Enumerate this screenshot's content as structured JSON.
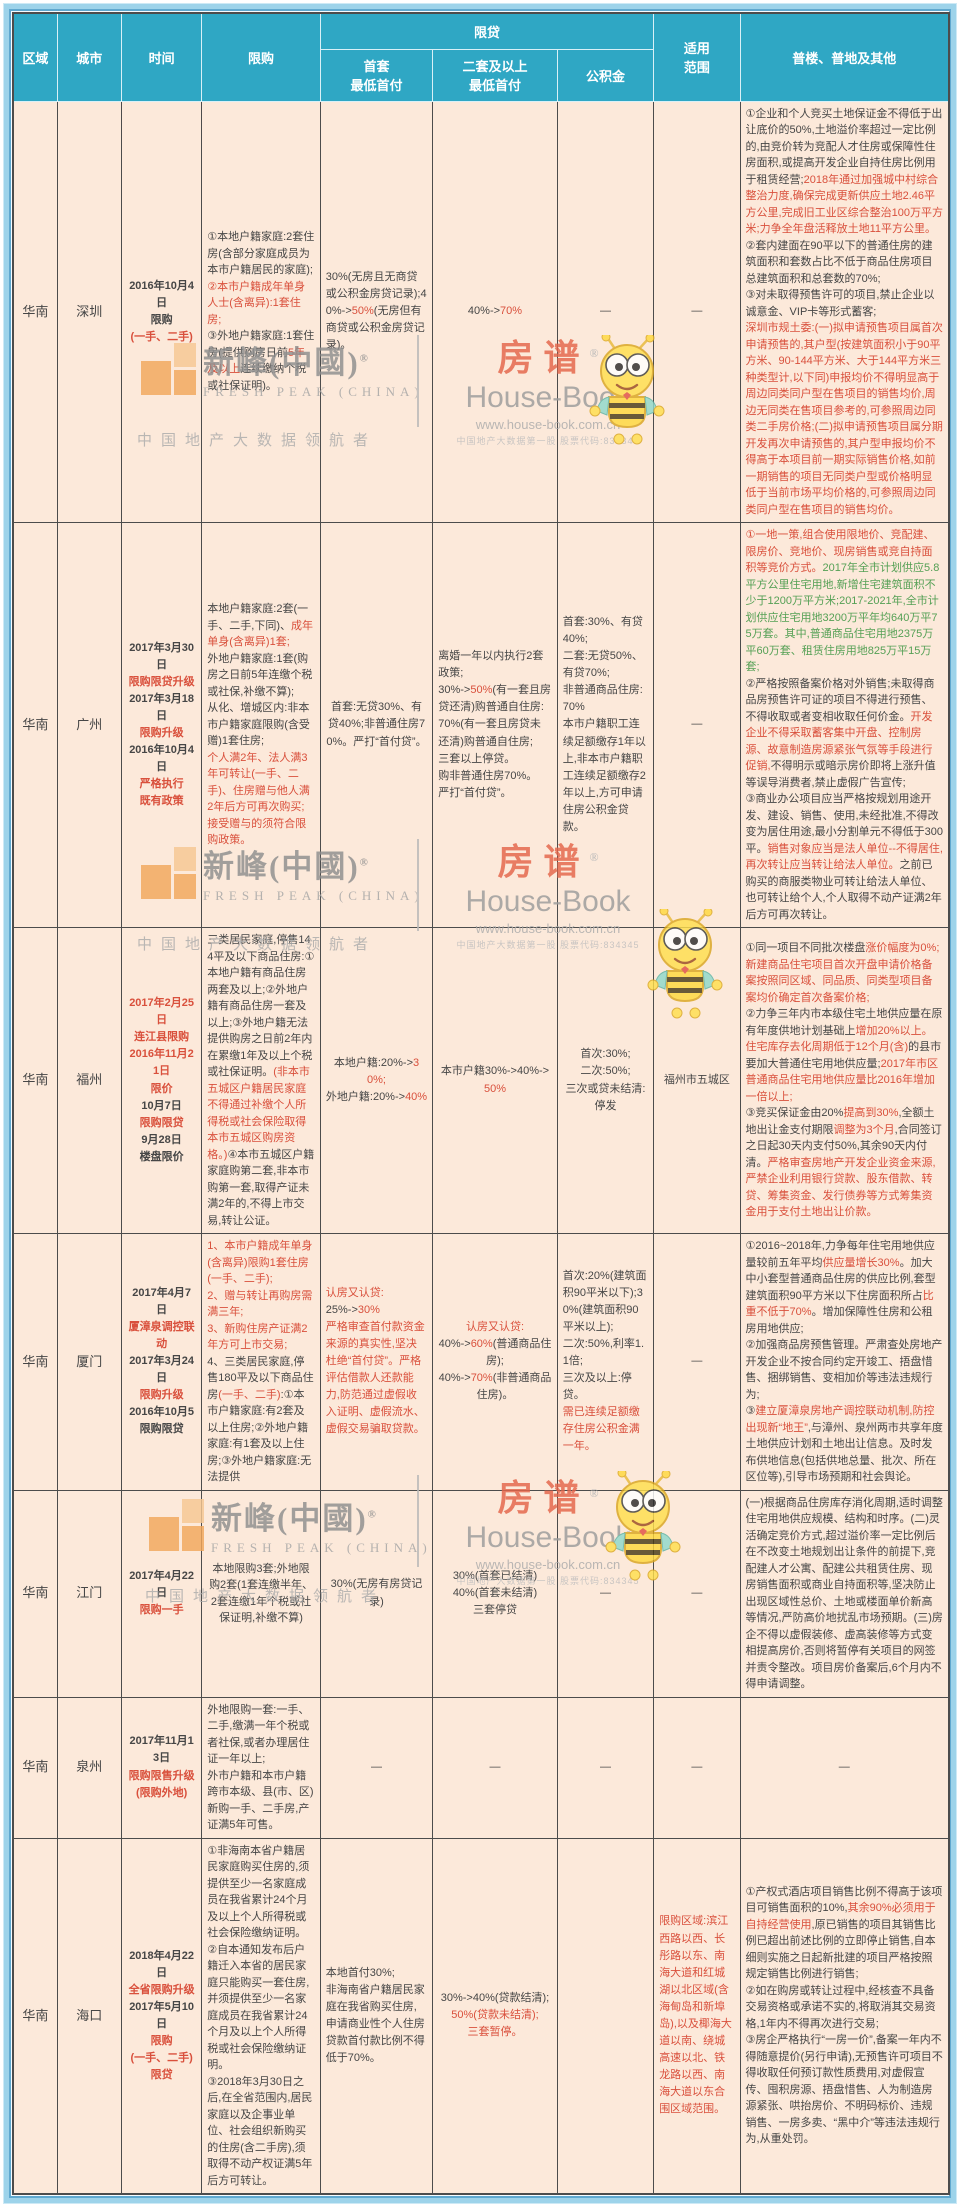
{
  "header": {
    "region": "区域",
    "city": "城市",
    "time": "时间",
    "gou": "限购",
    "loan_group": "限贷",
    "shoutao": "首套\n最低首付",
    "ertao": "二套及以上\n最低首付",
    "gjj": "公积金",
    "scope": "适用\n范围",
    "other": "普楼、普地及其他"
  },
  "colors": {
    "red": "#d9503c",
    "green": "#55a055",
    "header_bg": "#2fa7c4",
    "cell_bg": "#fce9da",
    "text": "#464646",
    "frame_blue": "#9dd3ea"
  },
  "watermarks": {
    "fresh_peak": {
      "cn": "新峰(中國)",
      "reg": "®",
      "en": "FRESH PEAK (CHINA)",
      "tagline": "中国地产大数据领航者"
    },
    "house_book": {
      "cn": "房谱",
      "reg": "®",
      "en": "House-Book",
      "url": "www.house-book.com.cn",
      "tagline": "中国地产大数据第一股 股票代码:834345"
    }
  },
  "rows": [
    {
      "region": [
        {
          "t": "华南"
        }
      ],
      "city": [
        {
          "t": "深圳"
        }
      ],
      "time": [
        {
          "t": "2016年10月4日\n限购\n"
        },
        {
          "t": "(一手、二手)",
          "c": "r"
        }
      ],
      "gou": [
        {
          "t": "①本地户籍家庭:2套住房(含部分家庭成员为本市户籍居民的家庭);\n"
        },
        {
          "t": "②本市户籍成年单身人士(含离异):1套住房;",
          "c": "r"
        },
        {
          "t": "\n③外地户籍家庭:1套住房(提供购房日前"
        },
        {
          "t": "5年及以上",
          "c": "r"
        },
        {
          "t": "连续缴纳个税或社保证明)。"
        }
      ],
      "shoutao": [
        {
          "t": "30%(无房且无商贷或公积金房贷记录);40%->"
        },
        {
          "t": "50%",
          "c": "r"
        },
        {
          "t": "(无房但有商贷或公积金房贷记录)。"
        }
      ],
      "ertao": [
        {
          "t": "40%->"
        },
        {
          "t": "70%",
          "c": "r"
        }
      ],
      "gjj": [
        {
          "t": "—"
        }
      ],
      "scope": [
        {
          "t": "—"
        }
      ],
      "other": [
        {
          "t": "①企业和个人竞买土地保证金不得低于出让底价的50%,土地溢价率超过一定比例的,由竞价转为竞配人才住房或保障性住房面积,或提高开发企业自持住房比例用于租赁经营;"
        },
        {
          "t": "2018年通过加强城中村综合整治力度,确保完成更新供应土地2.46平方公里,完成旧工业区综合整治100万平方米;力争全年盘活释放土地11平方公里。",
          "c": "r"
        },
        {
          "t": "\n②套内建面在90平以下的普通住房的建筑面积和套数占比不低于商品住房项目总建筑面积和总套数的70%;\n③对未取得预售许可的项目,禁止企业以诚意金、VIP卡等形式蓄客;\n"
        },
        {
          "t": "深圳市规土委:(一)拟申请预售项目属首次申请预售的,其户型(按建筑面积小于90平方米、90-144平方米、大于144平方米三种类型计,以下同)申报均价不得明显高于周边同类同户型在售项目的销售均价,周边无同类在售项目参考的,可参照周边同类二手房价格;(二)拟申请预售项目属分期开发再次申请预售的,其户型申报均价不得高于本项目前一期实际销售价格,如前一期销售的项目无同类户型或价格明显低于当前市场平均价格的,可参照周边同类同户型在售项目的销售均价。",
          "c": "r"
        }
      ]
    },
    {
      "region": [
        {
          "t": "华南"
        }
      ],
      "city": [
        {
          "t": "广州"
        }
      ],
      "time": [
        {
          "t": "2017年3月30日\n"
        },
        {
          "t": "限购限贷升级",
          "c": "r"
        },
        {
          "t": "\n2017年3月18日\n"
        },
        {
          "t": "限购升级",
          "c": "r"
        },
        {
          "t": "\n2016年10月4日\n"
        },
        {
          "t": "严格执行\n既有政策",
          "c": "r"
        }
      ],
      "gou": [
        {
          "t": "本地户籍家庭:2套(一手、二手,下同)、"
        },
        {
          "t": "成年单身(含离异)1套;",
          "c": "r"
        },
        {
          "t": "\n外地户籍家庭:1套(购房之日前5年连缴个税或社保,补缴不算);\n从化、增城区内:非本市户籍家庭限购(含受赠)1套住房;\n"
        },
        {
          "t": "个人满2年、法人满3年可转让(一手、二手)、住房赠与他人满2年后方可再次购买;接受赠与的须符合限购政策。",
          "c": "r"
        }
      ],
      "shoutao": [
        {
          "t": "首套:无贷30%、有贷40%;非普通住房70%。严打“首付贷”。"
        }
      ],
      "ertao": [
        {
          "t": "离婚一年以内执行2套政策;\n30%->"
        },
        {
          "t": "50%",
          "c": "r"
        },
        {
          "t": "(有一套且房贷还清)购普通自住房:\n70%(有一套且房贷未还清)购普通自住房;\n三套以上停贷。\n购非普通住房70%。\n严打“首付贷”。"
        }
      ],
      "gjj": [
        {
          "t": "首套:30%、有贷40%;\n二套:无贷50%、有贷70%;\n非普通商品住房:70%\n本市户籍职工连续足额缴存1年以上,非本市户籍职工连续足额缴存2年以上,方可申请住房公积金贷款。"
        }
      ],
      "scope": [
        {
          "t": "—"
        }
      ],
      "other": [
        {
          "t": "①一地一策,组合使用限地价、竞配建、限房价、竞地价、现房销售或竞自持面积等竞价方式。",
          "c": "r"
        },
        {
          "t": "2017年全市计划供应5.8平方公里住宅用地,新增住宅建筑面积不少于1200万平方米;2017-2021年,全市计划供应住宅用地3200万平年均640万平75万套。其中,普通商品住宅用地2375万平60万套、租赁住房用地825万平15万套;",
          "c": "g"
        },
        {
          "t": "\n②严格按照备案价格对外销售;未取得商品房预售许可证的项目不得进行预售、不得收取或者变相收取任何价金。"
        },
        {
          "t": "开发企业不得采取蓄客集中开盘、控制房源、故意制造房源紧张气氛等手段进行促销,",
          "c": "r"
        },
        {
          "t": "不得明示或暗示房价即将上涨升值等误导消费者,禁止虚假广告宣传;\n③商业办公项目应当严格按规划用途开发、建设、销售、使用,未经批准,不得改变为居住用途,最小分割单元不得低于300平。"
        },
        {
          "t": "销售对象应当是法人单位--不得居住,再次转让应当转让给法人单位。",
          "c": "r"
        },
        {
          "t": "之前已购买的商服类物业可转让给法人单位、也可转让给个人,个人取得不动产证满2年后方可再次转让。"
        }
      ]
    },
    {
      "region": [
        {
          "t": "华南"
        }
      ],
      "city": [
        {
          "t": "福州"
        }
      ],
      "time": [
        {
          "t": "2017年2月25日\n连江县限购\n2016年11月21日\n限价\n",
          "c": "r"
        },
        {
          "t": "10月7日\n"
        },
        {
          "t": "限购限贷",
          "c": "r"
        },
        {
          "t": "\n9月28日\n楼盘限价"
        }
      ],
      "gou": [
        {
          "t": "三类居民家庭,停售144平及以下商品住房:①本地户籍有商品住房两套及以上;②外地户籍有商品住房一套及以上;③外地户籍无法提供购房之日前2年内在累缴1年及以上个税或社保证明。"
        },
        {
          "t": "(非本市五城区户籍居民家庭不得通过补缴个人所得税或社会保险取得本市五城区购房资格。)",
          "c": "r"
        },
        {
          "t": "④本市五城区户籍家庭购第二套,非本市购第一套,取得产证未满2年的,不得上市交易,转让公证。"
        }
      ],
      "shoutao": [
        {
          "t": "本地户籍:20%->"
        },
        {
          "t": "30%;",
          "c": "r"
        },
        {
          "t": "\n外地户籍:20%->"
        },
        {
          "t": "40%",
          "c": "r"
        }
      ],
      "ertao": [
        {
          "t": "本市户籍30%->40%->"
        },
        {
          "t": "50%",
          "c": "r"
        }
      ],
      "gjj": [
        {
          "t": "首次:30%;\n二次:50%;\n三次或贷未结清:停发"
        }
      ],
      "scope": [
        {
          "t": "福州市五城区"
        }
      ],
      "other": [
        {
          "t": "①同一项目不同批次楼盘"
        },
        {
          "t": "涨价幅度为0%;新建商品住宅项目首次开盘申请价格备案按照同区域、同品质、同类型项目备案均价确定首次备案价格;",
          "c": "r"
        },
        {
          "t": "\n②力争三年内市本级住宅土地供应量在原有年度供地计划基础上"
        },
        {
          "t": "增加20%以上。住宅库存去化周期低于12个月(含)",
          "c": "r"
        },
        {
          "t": "的县市要加大普通住宅用地供应量;"
        },
        {
          "t": "2017年市区普通商品住宅用地供应量比2016年增加一倍以上;",
          "c": "r"
        },
        {
          "t": "\n③竞买保证金由20%"
        },
        {
          "t": "提高到30%",
          "c": "r"
        },
        {
          "t": ",全额土地出让金支付期限"
        },
        {
          "t": "调整为3个月",
          "c": "r"
        },
        {
          "t": ",合同签订之日起30天内支付50%,其余90天内付清。"
        },
        {
          "t": "严格审查房地产开发企业资金来源,严禁企业利用银行贷款、股东借款、转贷、筹集资金、发行债券等方式筹集资金用于支付土地出让价款。",
          "c": "r"
        }
      ]
    },
    {
      "region": [
        {
          "t": "华南"
        }
      ],
      "city": [
        {
          "t": "厦门"
        }
      ],
      "time": [
        {
          "t": "2017年4月7日\n"
        },
        {
          "t": "厦漳泉调控联动",
          "c": "r"
        },
        {
          "t": "\n2017年3月24日\n"
        },
        {
          "t": "限购升级",
          "c": "r"
        },
        {
          "t": "\n2016年10月5\n限购限贷"
        }
      ],
      "gou": [
        {
          "t": "1、本市户籍成年单身(含离异)限购1套住房(一手、二手);\n2、赠与转让再购房需满三年;\n3、新购住房产证满2年方可上市交易;",
          "c": "r"
        },
        {
          "t": "\n4、三类居民家庭,停售180平及以下商品住房"
        },
        {
          "t": "(一手、二手)",
          "c": "r"
        },
        {
          "t": ":①本市户籍家庭:有2套及以上住房;②外地户籍家庭:有1套及以上住房;③外地户籍家庭:无法提供"
        }
      ],
      "shoutao": [
        {
          "t": "认房又认贷:\n",
          "c": "r"
        },
        {
          "t": "25%->"
        },
        {
          "t": "30%",
          "c": "r"
        },
        {
          "t": "\n"
        },
        {
          "t": "严格审查首付款资金来源的真实性,坚决杜绝“首付贷”。严格评估借款人还款能力,防范通过虚假收入证明、虚假流水、虚假交易骗取贷款。",
          "c": "r"
        }
      ],
      "ertao": [
        {
          "t": "认房又认贷:",
          "c": "r"
        },
        {
          "t": "\n40%->"
        },
        {
          "t": "60%",
          "c": "r"
        },
        {
          "t": "(普通商品住房);\n40%->"
        },
        {
          "t": "70%",
          "c": "r"
        },
        {
          "t": "(非普通商品住房)。"
        }
      ],
      "gjj": [
        {
          "t": "首次:20%(建筑面积90平米以下);30%(建筑面积90平米以上);\n二次:50%,利率1.1倍;\n三次及以上:停贷。\n"
        },
        {
          "t": "需已连续足额缴存住房公积金满一年。",
          "c": "r"
        }
      ],
      "scope": [
        {
          "t": "—"
        }
      ],
      "other": [
        {
          "t": "①2016~2018年,力争每年住宅用地供应量较前五年平均"
        },
        {
          "t": "供应量增长30%",
          "c": "r"
        },
        {
          "t": "。加大中小套型普通商品住房的供应比例,套型建筑面积90平方米以下住房面积所占"
        },
        {
          "t": "比重不低于70%",
          "c": "r"
        },
        {
          "t": "。增加保障性住房和公租房用地供应;\n②加强商品房预售管理。严肃查处房地产开发企业不按合同约定开竣工、捂盘惜售、捆绑销售、变相加价等违法违规行为;\n③"
        },
        {
          "t": "建立厦漳泉房地产调控联动机制,防控出现新“地王”",
          "c": "r"
        },
        {
          "t": ",与漳州、泉州两市共享年度土地供应计划和土地出让信息。及时发布供地信息(包括供地总量、批次、所在区位等),引导市场预期和社会舆论。"
        }
      ]
    },
    {
      "region": [
        {
          "t": "华南"
        }
      ],
      "city": [
        {
          "t": "江门"
        }
      ],
      "time": [
        {
          "t": "2017年4月22日\n"
        },
        {
          "t": "限购一手",
          "c": "r"
        }
      ],
      "gou": [
        {
          "t": "本地限购3套;外地限购2套(1套连缴半年、2套连缴1年个税或社保证明,补缴不算)"
        }
      ],
      "shoutao": [
        {
          "t": "30%(无房有房贷记录)"
        }
      ],
      "ertao": [
        {
          "t": "30%(首套已结清)\n40%(首套未结清)\n三套停贷"
        }
      ],
      "gjj": [
        {
          "t": "—"
        }
      ],
      "scope": [
        {
          "t": "—"
        }
      ],
      "other": [
        {
          "t": "(一)根据商品住房库存消化周期,适时调整住宅用地供应规模、结构和时序。(二)灵活确定竞价方式,超过溢价率一定比例后在不改变土地规划出让条件的前提下,竞配建人才公寓、配建公共租赁住房、现房销售面积或商业自持面积等,坚决防止出现区域性总价、土地或楼面单价新高等情况,严防高价地扰乱市场预期。(三)房企不得以虚假装修、虚高装修等方式变相提高房价,否则将暂停有关项目的网签并责令整改。项目房价备案后,6个月内不得申请调整。"
        }
      ]
    },
    {
      "region": [
        {
          "t": "华南"
        }
      ],
      "city": [
        {
          "t": "泉州"
        }
      ],
      "time": [
        {
          "t": "2017年11月13日\n"
        },
        {
          "t": "限购限售升级\n(限购外地)",
          "c": "r"
        }
      ],
      "gou": [
        {
          "t": "外地限购一套:一手、二手,缴满一年个税或者社保,或者办理居住证一年以上;\n外市户籍和本市户籍跨市本级、县(市、区)新购一手、二手房,产证满5年可售。"
        }
      ],
      "shoutao": [
        {
          "t": "—"
        }
      ],
      "ertao": [
        {
          "t": "—"
        }
      ],
      "gjj": [
        {
          "t": "—"
        }
      ],
      "scope": [
        {
          "t": "—"
        }
      ],
      "other": [
        {
          "t": "—"
        }
      ]
    },
    {
      "region": [
        {
          "t": "华南"
        }
      ],
      "city": [
        {
          "t": "海口"
        }
      ],
      "time": [
        {
          "t": "2018年4月22日\n"
        },
        {
          "t": "全省限购升级",
          "c": "r"
        },
        {
          "t": "\n2017年5月10日\n"
        },
        {
          "t": "限购\n(一手、二手)\n限贷",
          "c": "r"
        }
      ],
      "gou": [
        {
          "t": "①非海南本省户籍居民家庭购买住房的,须提供至少一名家庭成员在我省累计24个月及以上个人所得税或社会保险缴纳证明。\n②自本通知发布后户籍迁入本省的居民家庭只能购买一套住房,并须提供至少一名家庭成员在我省累计24个月及以上个人所得税或社会保险缴纳证明。\n③2018年3月30日之后,在全省范围内,居民家庭以及企事业单位、社会组织新购买的住房(含二手房),须取得不动产权证满5年后方可转让。"
        }
      ],
      "shoutao": [
        {
          "t": "本地首付30%;\n非海南省户籍居民家庭在我省购买住房,申请商业性个人住房贷款首付款比例不得低于70%。"
        }
      ],
      "ertao": [
        {
          "t": "30%->40%(贷款结清);\n"
        },
        {
          "t": "50%(贷款未结清);\n三套暂停。",
          "c": "r"
        }
      ],
      "gjj": [],
      "scope": [
        {
          "t": "限购区域:滨江西路以西、长彤路以东、南海大道和红城湖以北区域(含海甸岛和新埠岛),以及椰海大道以南、绕城高速以北、铁龙路以西、南海大道以东合围区域范围。",
          "c": "r"
        }
      ],
      "other": [
        {
          "t": "①产权式酒店项目销售比例不得高于该项目可销售面积的10%,"
        },
        {
          "t": "其余90%必须用于自持经营使用",
          "c": "r"
        },
        {
          "t": ",原已销售的项目其销售比例已超出前述比例的立即停止销售,自本细则实施之日起新批建的项目严格按照规定销售比例进行销售;\n②如在购房或转让过程中,经核查不具备交易资格或承诺不实的,将取消其交易资格,1年内不得再次进行交易;\n③房企严格执行“一房一价”,备案一年内不得随意提价(另行申请),无预售许可项目不得收取任何预订款性质费用,对虚假宣传、囤积房源、捂盘惜售、人为制造房源紧张、哄抬房价、不明码标价、违规销售、一房多卖、“黑中介”等违法违规行为,从重处罚。"
        }
      ]
    }
  ]
}
